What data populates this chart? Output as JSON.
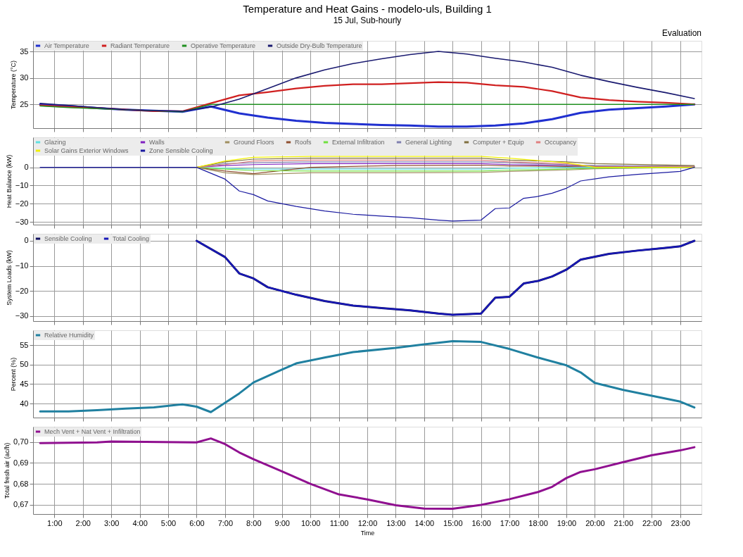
{
  "chart_data": [
    {
      "type": "line",
      "title": "Temperature and Heat Gains - modelo-uls, Building 1",
      "subtitle": "15 Jul, Sub-hourly",
      "annotations": [
        "Evaluation"
      ],
      "ylabel": "Temperature (°C)",
      "grid": true,
      "legend": "top left",
      "tick_labels": "y",
      "x": [
        0.5,
        1.5,
        2.5,
        3.5,
        4.5,
        5.5,
        6.5,
        7.5,
        8.5,
        9.5,
        10.5,
        11.5,
        12.5,
        13.5,
        14.5,
        15.5,
        16.5,
        17.5,
        18.5,
        19.5,
        20.5,
        21.5,
        22.5,
        23.5
      ],
      "xlim": [
        0.25,
        23.75
      ],
      "xticks": [
        1,
        2,
        3,
        4,
        5,
        6,
        7,
        8,
        9,
        10,
        11,
        12,
        13,
        14,
        15,
        16,
        17,
        18,
        19,
        20,
        21,
        22,
        23
      ],
      "ylim": [
        20.5,
        37
      ],
      "yticks": [
        25,
        30,
        35
      ],
      "series": [
        {
          "name": "Air Temperature",
          "color": "#2030d0",
          "values": [
            25.0,
            24.7,
            24.3,
            24.0,
            23.8,
            23.6,
            24.6,
            23.3,
            22.5,
            21.9,
            21.5,
            21.3,
            21.1,
            21.0,
            20.8,
            20.8,
            21.0,
            21.4,
            22.2,
            23.4,
            24.0,
            24.3,
            24.6,
            25.0
          ]
        },
        {
          "name": "Radiant Temperature",
          "color": "#d02020",
          "values": [
            24.8,
            24.5,
            24.3,
            24.0,
            23.7,
            23.7,
            25.2,
            26.7,
            27.3,
            28.0,
            28.5,
            28.8,
            28.8,
            29.0,
            29.2,
            29.1,
            28.6,
            28.3,
            27.5,
            26.3,
            25.8,
            25.5,
            25.3,
            25.0
          ]
        },
        {
          "name": "Operative Temperature",
          "color": "#209020",
          "values": [
            24.7,
            24.4,
            24.2,
            24.0,
            23.8,
            23.6,
            25.0,
            25.0,
            25.0,
            25.0,
            25.0,
            25.0,
            25.0,
            25.0,
            25.0,
            25.0,
            25.0,
            25.0,
            25.0,
            25.0,
            25.0,
            25.0,
            25.0,
            25.0
          ]
        },
        {
          "name": "Outside Dry-Bulb Temperature",
          "color": "#1a1a70",
          "values": [
            25.2,
            24.8,
            24.4,
            24.0,
            23.8,
            23.7,
            24.5,
            26.0,
            28.0,
            30.0,
            31.5,
            32.7,
            33.6,
            34.4,
            35.0,
            34.5,
            33.7,
            33.0,
            32.0,
            30.5,
            29.3,
            28.2,
            27.2,
            26.1
          ]
        }
      ]
    },
    {
      "type": "line",
      "ylabel": "Heat Balance (kW)",
      "grid": true,
      "legend": "top left",
      "tick_labels": "y",
      "x": [
        6.0,
        7.0,
        8.0,
        10.0,
        13.0,
        16.0,
        17.0,
        19.0,
        20.0,
        23.5
      ],
      "xlim": [
        0.25,
        23.75
      ],
      "xticks": [
        1,
        2,
        3,
        4,
        5,
        6,
        7,
        8,
        9,
        10,
        11,
        12,
        13,
        14,
        15,
        16,
        17,
        18,
        19,
        20,
        21,
        22,
        23
      ],
      "ylim": [
        -31.5,
        16.5
      ],
      "yticks": [
        -30,
        -20,
        -10,
        0
      ],
      "series": [
        {
          "name": "Glazing",
          "color": "#60e0e0",
          "values": [
            0,
            -0.5,
            -1,
            -1,
            -1,
            -1,
            -0.5,
            0,
            0,
            0
          ]
        },
        {
          "name": "Walls",
          "color": "#8020c0",
          "values": [
            0,
            1,
            1.5,
            2,
            2,
            2,
            1.5,
            1,
            0.5,
            0.5
          ]
        },
        {
          "name": "Ground Floors",
          "color": "#a09060",
          "values": [
            0,
            -3,
            -4,
            -3,
            -3,
            -2.8,
            -2.2,
            -1.5,
            -0.8,
            0
          ]
        },
        {
          "name": "Roofs",
          "color": "#905030",
          "values": [
            0,
            -2,
            -3.5,
            0,
            1,
            1.2,
            0.8,
            0.5,
            0.8,
            0.5
          ]
        },
        {
          "name": "External Infiltration",
          "color": "#70e040",
          "values": [
            0,
            -1,
            -1.8,
            -2,
            -2,
            -2,
            -1.5,
            -1,
            -0.5,
            0
          ]
        },
        {
          "name": "General Lighting",
          "color": "#8080b0",
          "values": [
            0,
            2,
            2.5,
            3,
            3,
            3,
            2.5,
            1.5,
            1,
            0.5
          ]
        },
        {
          "name": "Computer + Equip",
          "color": "#807040",
          "values": [
            0,
            3,
            4.5,
            5,
            5,
            5,
            4,
            3,
            2,
            1
          ]
        },
        {
          "name": "Occupancy",
          "color": "#e08080",
          "values": [
            0,
            1.5,
            3.5,
            4,
            4,
            4,
            3,
            2,
            0.3,
            0.3
          ]
        },
        {
          "name": "Solar Gains Exterior Windows",
          "color": "#f0f000",
          "values": [
            0,
            3.5,
            5.5,
            6,
            6,
            6,
            5,
            2.5,
            0,
            0
          ]
        },
        {
          "name": "Zone Sensible Cooling",
          "color": "#1a1aa0",
          "x": [
            0.5,
            6.0,
            7.0,
            7.5,
            8.0,
            8.5,
            9.5,
            10.5,
            11.5,
            12.5,
            13.5,
            14.5,
            15.0,
            16.0,
            16.5,
            17.0,
            17.5,
            18.0,
            18.5,
            19.0,
            19.5,
            20.5,
            21.5,
            22.5,
            23.0,
            23.5
          ],
          "values": [
            0,
            0,
            -6.5,
            -13,
            -15,
            -18.5,
            -21.5,
            -24,
            -25.8,
            -26.8,
            -27.7,
            -29,
            -29.5,
            -29,
            -22.7,
            -22.3,
            -17,
            -16,
            -14.2,
            -11.5,
            -7.5,
            -5.2,
            -3.9,
            -2.8,
            -2.2,
            0
          ]
        }
      ]
    },
    {
      "type": "line",
      "ylabel": "System Loads (kW)",
      "grid": true,
      "legend": "top left",
      "tick_labels": "y",
      "x": [
        6.0,
        7.0,
        7.5,
        8.0,
        8.5,
        9.5,
        10.5,
        11.5,
        12.5,
        13.5,
        14.5,
        15.0,
        16.0,
        16.5,
        17.0,
        17.5,
        18.0,
        18.5,
        19.0,
        19.5,
        20.5,
        21.5,
        22.5,
        23.0,
        23.5
      ],
      "xlim": [
        0.25,
        23.75
      ],
      "xticks": [
        1,
        2,
        3,
        4,
        5,
        6,
        7,
        8,
        9,
        10,
        11,
        12,
        13,
        14,
        15,
        16,
        17,
        18,
        19,
        20,
        21,
        22,
        23
      ],
      "ylim": [
        -32,
        2.8
      ],
      "yticks": [
        -30,
        -20,
        -10,
        0
      ],
      "series": [
        {
          "name": "Sensible Cooling",
          "color": "#101060",
          "values": [
            0,
            -6.5,
            -13,
            -15,
            -18.5,
            -21.5,
            -24,
            -25.8,
            -26.8,
            -27.7,
            -29,
            -29.5,
            -29,
            -22.7,
            -22.3,
            -17,
            -16,
            -14.2,
            -11.5,
            -7.5,
            -5.2,
            -3.9,
            -2.8,
            -2.2,
            0
          ]
        },
        {
          "name": "Total Cooling",
          "color": "#1818b8",
          "values": [
            0,
            -6.5,
            -13,
            -15,
            -18.5,
            -21.5,
            -24,
            -25.8,
            -26.8,
            -27.7,
            -29,
            -29.5,
            -29,
            -22.7,
            -22.3,
            -17,
            -16,
            -14.2,
            -11.5,
            -7.5,
            -5.2,
            -3.9,
            -2.8,
            -2.2,
            0
          ]
        }
      ]
    },
    {
      "type": "line",
      "ylabel": "Percent (%)",
      "grid": true,
      "legend": "top left",
      "tick_labels": "y",
      "x": [
        0.5,
        1.5,
        2.5,
        3.5,
        4.5,
        5.5,
        6.0,
        6.5,
        7.5,
        8.0,
        9.0,
        9.5,
        10.5,
        11.5,
        13.0,
        14.0,
        15.0,
        16.0,
        17.0,
        18.0,
        19.0,
        19.5,
        20.0,
        21.0,
        22.0,
        23.0,
        23.5
      ],
      "xlim": [
        0.25,
        23.75
      ],
      "xticks": [
        1,
        2,
        3,
        4,
        5,
        6,
        7,
        8,
        9,
        10,
        11,
        12,
        13,
        14,
        15,
        16,
        17,
        18,
        19,
        20,
        21,
        22,
        23
      ],
      "ylim": [
        36.4,
        58.8
      ],
      "yticks": [
        40,
        45,
        50,
        55
      ],
      "series": [
        {
          "name": "Relative Humidity",
          "color": "#2080a0",
          "values": [
            38.0,
            38.0,
            38.3,
            38.7,
            39.0,
            39.8,
            39.2,
            37.8,
            42.6,
            45.4,
            48.7,
            50.3,
            51.8,
            53.2,
            54.3,
            55.2,
            56.0,
            55.8,
            54.0,
            51.8,
            49.8,
            48.0,
            45.3,
            43.5,
            42.0,
            40.5,
            39.0
          ]
        }
      ]
    },
    {
      "type": "line",
      "ylabel": "Total fresh air (ac/h)",
      "xlabel": "Time",
      "grid": true,
      "legend": "top left",
      "x": [
        0.5,
        2.5,
        3.0,
        6.0,
        6.5,
        7.0,
        7.5,
        8.0,
        9.0,
        10.0,
        11.0,
        12.0,
        13.0,
        14.0,
        15.0,
        16.0,
        17.0,
        18.0,
        18.5,
        19.0,
        19.5,
        20.0,
        21.0,
        22.0,
        23.0,
        23.5
      ],
      "xlim": [
        0.25,
        23.75
      ],
      "xticks": [
        {
          "value": 1,
          "label": "1:00"
        },
        {
          "value": 2,
          "label": "2:00"
        },
        {
          "value": 3,
          "label": "3:00"
        },
        {
          "value": 4,
          "label": "4:00"
        },
        {
          "value": 5,
          "label": "5:00"
        },
        {
          "value": 6,
          "label": "6:00"
        },
        {
          "value": 7,
          "label": "7:00"
        },
        {
          "value": 8,
          "label": "8:00"
        },
        {
          "value": 9,
          "label": "9:00"
        },
        {
          "value": 10,
          "label": "10:00"
        },
        {
          "value": 11,
          "label": "11:00"
        },
        {
          "value": 12,
          "label": "12:00"
        },
        {
          "value": 13,
          "label": "13:00"
        },
        {
          "value": 14,
          "label": "14:00"
        },
        {
          "value": 15,
          "label": "15:00"
        },
        {
          "value": 16,
          "label": "16:00"
        },
        {
          "value": 17,
          "label": "17:00"
        },
        {
          "value": 18,
          "label": "18:00"
        },
        {
          "value": 19,
          "label": "19:00"
        },
        {
          "value": 20,
          "label": "20:00"
        },
        {
          "value": 21,
          "label": "21:00"
        },
        {
          "value": 22,
          "label": "22:00"
        },
        {
          "value": 23,
          "label": "23:00"
        }
      ],
      "ylim": [
        0.6656,
        0.7073
      ],
      "yticks": [
        {
          "value": 0.67,
          "label": "0,67"
        },
        {
          "value": 0.68,
          "label": "0,68"
        },
        {
          "value": 0.69,
          "label": "0,69"
        },
        {
          "value": 0.7,
          "label": "0,70"
        }
      ],
      "series": [
        {
          "name": "Mech Vent + Nat Vent + Infiltration",
          "color": "#901090",
          "values": [
            0.6995,
            0.6998,
            0.7002,
            0.6998,
            0.7017,
            0.699,
            0.695,
            0.6918,
            0.686,
            0.68,
            0.675,
            0.6726,
            0.6698,
            0.6682,
            0.6681,
            0.67,
            0.6727,
            0.6761,
            0.6786,
            0.6828,
            0.6857,
            0.687,
            0.6904,
            0.6937,
            0.696,
            0.6975
          ]
        }
      ]
    }
  ]
}
